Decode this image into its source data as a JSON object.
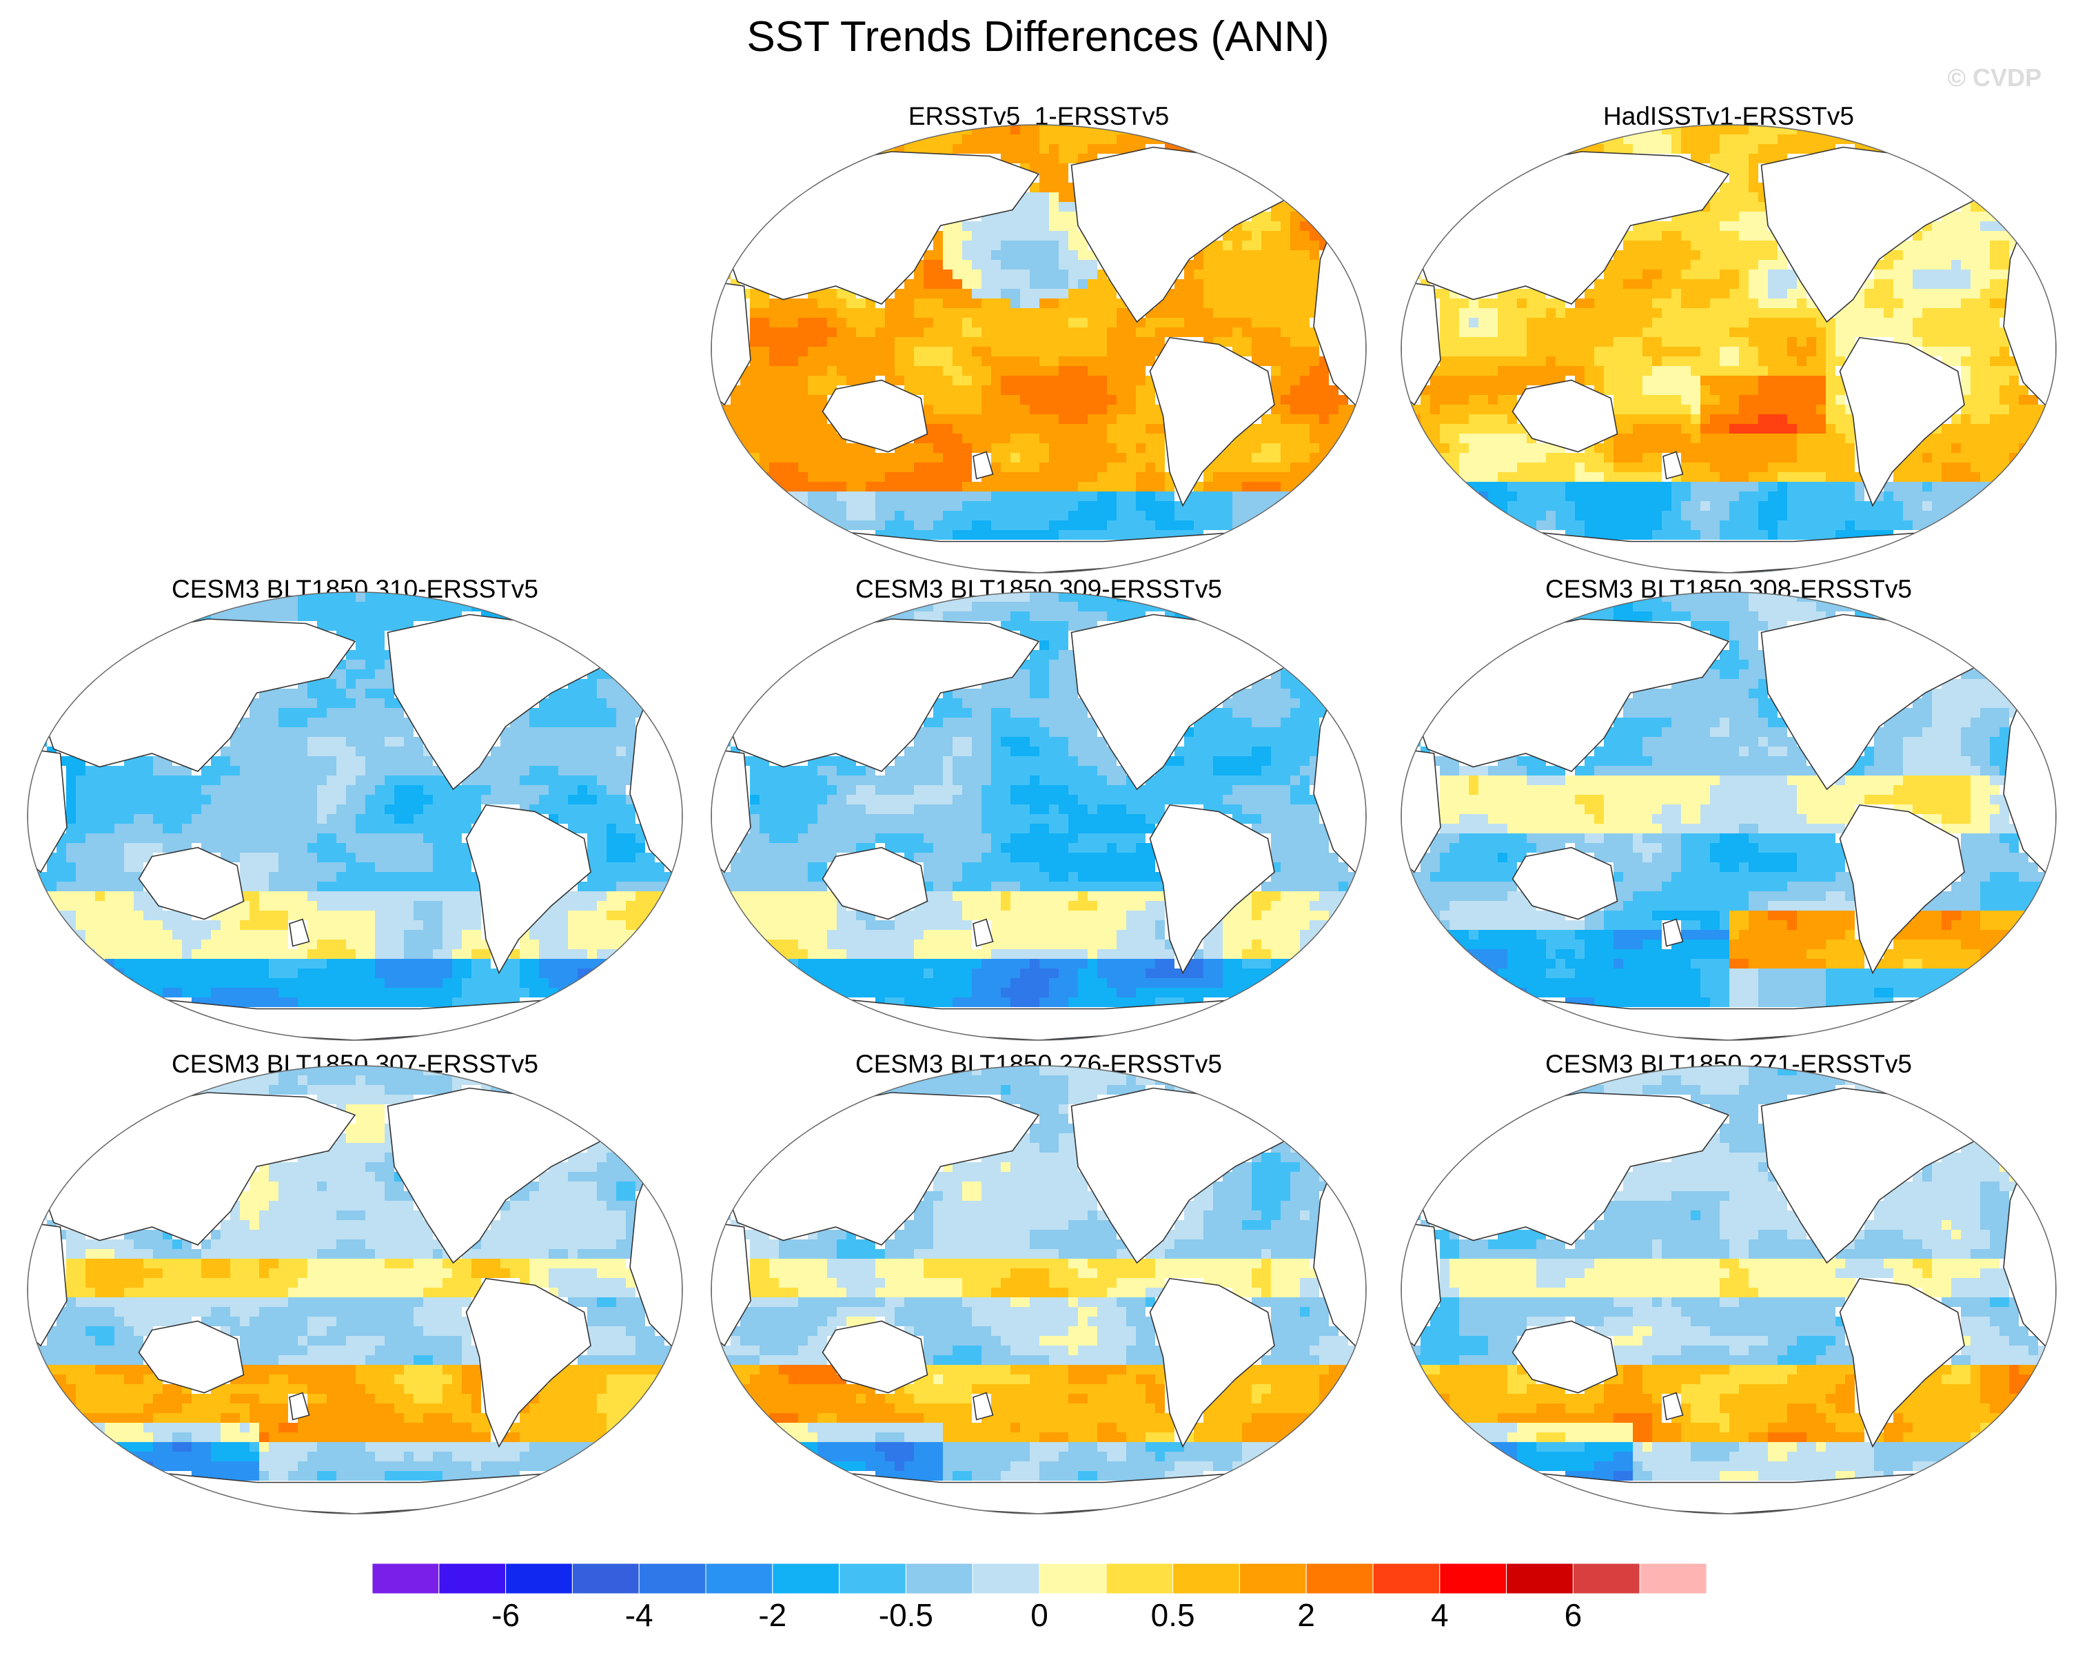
{
  "chart_data": {
    "type": "heatmap",
    "title": "SST Trends Differences (ANN)",
    "credit": "© CVDP",
    "projection": "Robinson-like global map, Pacific-centered",
    "panels": [
      {
        "title": "ERSSTv5_1-ERSSTv5",
        "pattern": "warm-dominant",
        "row": 1,
        "col": 2
      },
      {
        "title": "HadISSTv1-ERSSTv5",
        "pattern": "mixed-warm",
        "row": 1,
        "col": 3
      },
      {
        "title": "CESM3 BLT1850 310-ERSSTv5",
        "pattern": "cool-dominant",
        "row": 2,
        "col": 1
      },
      {
        "title": "CESM3 BLT1850 309-ERSSTv5",
        "pattern": "cool-dominant",
        "row": 2,
        "col": 2
      },
      {
        "title": "CESM3 BLT1850 308-ERSSTv5",
        "pattern": "cool-with-warm-south",
        "row": 2,
        "col": 3
      },
      {
        "title": "CESM3 BLT1850 307-ERSSTv5",
        "pattern": "mixed-warm-south",
        "row": 3,
        "col": 1
      },
      {
        "title": "CESM3 BLT1850 276-ERSSTv5",
        "pattern": "mixed-warm-south",
        "row": 3,
        "col": 2
      },
      {
        "title": "CESM3 BLT1850 271-ERSSTv5",
        "pattern": "mixed-warm-south",
        "row": 3,
        "col": 3
      }
    ],
    "colorbar": {
      "colors": [
        "#7a1fe8",
        "#3e12f2",
        "#1028f0",
        "#3460de",
        "#2f78ea",
        "#2a92f2",
        "#12b0f5",
        "#42c0f5",
        "#8ccaee",
        "#bee0f2",
        "#fffaa8",
        "#ffe040",
        "#ffbe10",
        "#ff9e00",
        "#ff7800",
        "#ff4010",
        "#ff0000",
        "#d00000",
        "#d84040",
        "#ffb4b4"
      ],
      "tick_labels": [
        "-6",
        "-4",
        "-2",
        "-0.5",
        "0",
        "0.5",
        "2",
        "4",
        "6"
      ],
      "tick_edges": [
        2,
        4,
        6,
        8,
        10,
        12,
        14,
        16,
        18
      ]
    }
  }
}
